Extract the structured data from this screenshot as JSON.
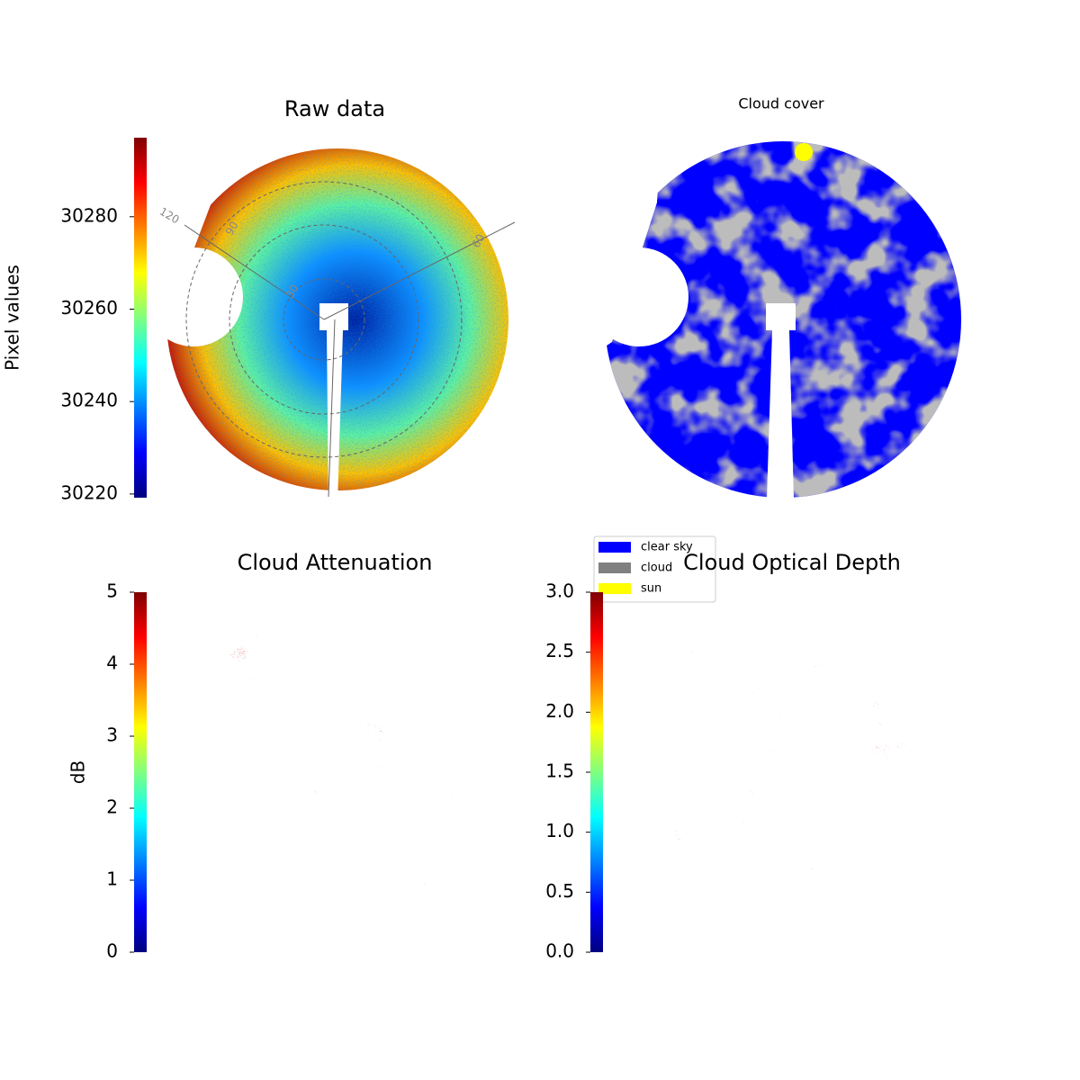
{
  "chart_data": [
    {
      "type": "heatmap",
      "title": "Raw data",
      "colormap": "jet",
      "colorbar_label": "Pixel values",
      "clim": [
        30219.2,
        30297.1
      ],
      "cticks": [
        30220,
        30240,
        30260,
        30280
      ],
      "radial_labels": [
        "120",
        "90",
        "60",
        "30"
      ]
    },
    {
      "type": "category_map",
      "title": "Cloud cover",
      "series": [
        {
          "name": "clear sky",
          "color": "#0000ff"
        },
        {
          "name": "cloud",
          "color": "#808080"
        },
        {
          "name": "sun",
          "color": "#ffff00"
        }
      ]
    },
    {
      "type": "heatmap",
      "title": "Cloud Attenuation",
      "colormap": "jet",
      "colorbar_label": "dB",
      "clim": [
        0,
        5
      ],
      "cticks": [
        0,
        1,
        2,
        3,
        4,
        5
      ]
    },
    {
      "type": "heatmap",
      "title": "Cloud Optical Depth",
      "colormap": "jet",
      "clim": [
        0,
        3
      ],
      "cticks": [
        {
          "value": 0,
          "label": "0.0"
        },
        {
          "value": 0.5,
          "label": "0.5"
        },
        {
          "value": 1,
          "label": "1.0"
        },
        {
          "value": 1.5,
          "label": "1.5"
        },
        {
          "value": 2,
          "label": "2.0"
        },
        {
          "value": 2.5,
          "label": "2.5"
        },
        {
          "value": 3,
          "label": "3.0"
        }
      ]
    }
  ]
}
